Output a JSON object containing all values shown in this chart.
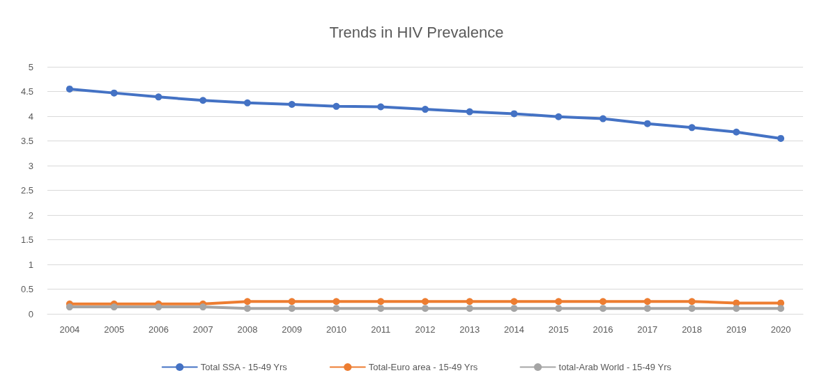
{
  "chart_data": {
    "type": "line",
    "title": "Trends in HIV Prevalence",
    "categories": [
      "2004",
      "2005",
      "2006",
      "2007",
      "2008",
      "2009",
      "2010",
      "2011",
      "2012",
      "2013",
      "2014",
      "2015",
      "2016",
      "2017",
      "2018",
      "2019",
      "2020"
    ],
    "series": [
      {
        "name": "Total SSA - 15-49 Yrs",
        "color": "#4472c4",
        "values": [
          4.55,
          4.47,
          4.39,
          4.32,
          4.27,
          4.24,
          4.2,
          4.19,
          4.14,
          4.09,
          4.05,
          3.99,
          3.95,
          3.85,
          3.77,
          3.68,
          3.55
        ]
      },
      {
        "name": "Total-Euro area - 15-49 Yrs",
        "color": "#ed7d31",
        "values": [
          0.2,
          0.2,
          0.2,
          0.2,
          0.25,
          0.25,
          0.25,
          0.25,
          0.25,
          0.25,
          0.25,
          0.25,
          0.25,
          0.25,
          0.25,
          0.22,
          0.22
        ]
      },
      {
        "name": "total-Arab World - 15-49 Yrs",
        "color": "#a5a5a5",
        "values": [
          0.14,
          0.14,
          0.14,
          0.14,
          0.11,
          0.11,
          0.11,
          0.11,
          0.11,
          0.11,
          0.11,
          0.11,
          0.11,
          0.11,
          0.11,
          0.11,
          0.11
        ]
      }
    ],
    "ylim": [
      0,
      5
    ],
    "yticks": [
      0,
      0.5,
      1,
      1.5,
      2,
      2.5,
      3,
      3.5,
      4,
      4.5,
      5
    ],
    "grid": "y",
    "legend": "bottom",
    "marker": "circle",
    "line_style": "solid"
  }
}
